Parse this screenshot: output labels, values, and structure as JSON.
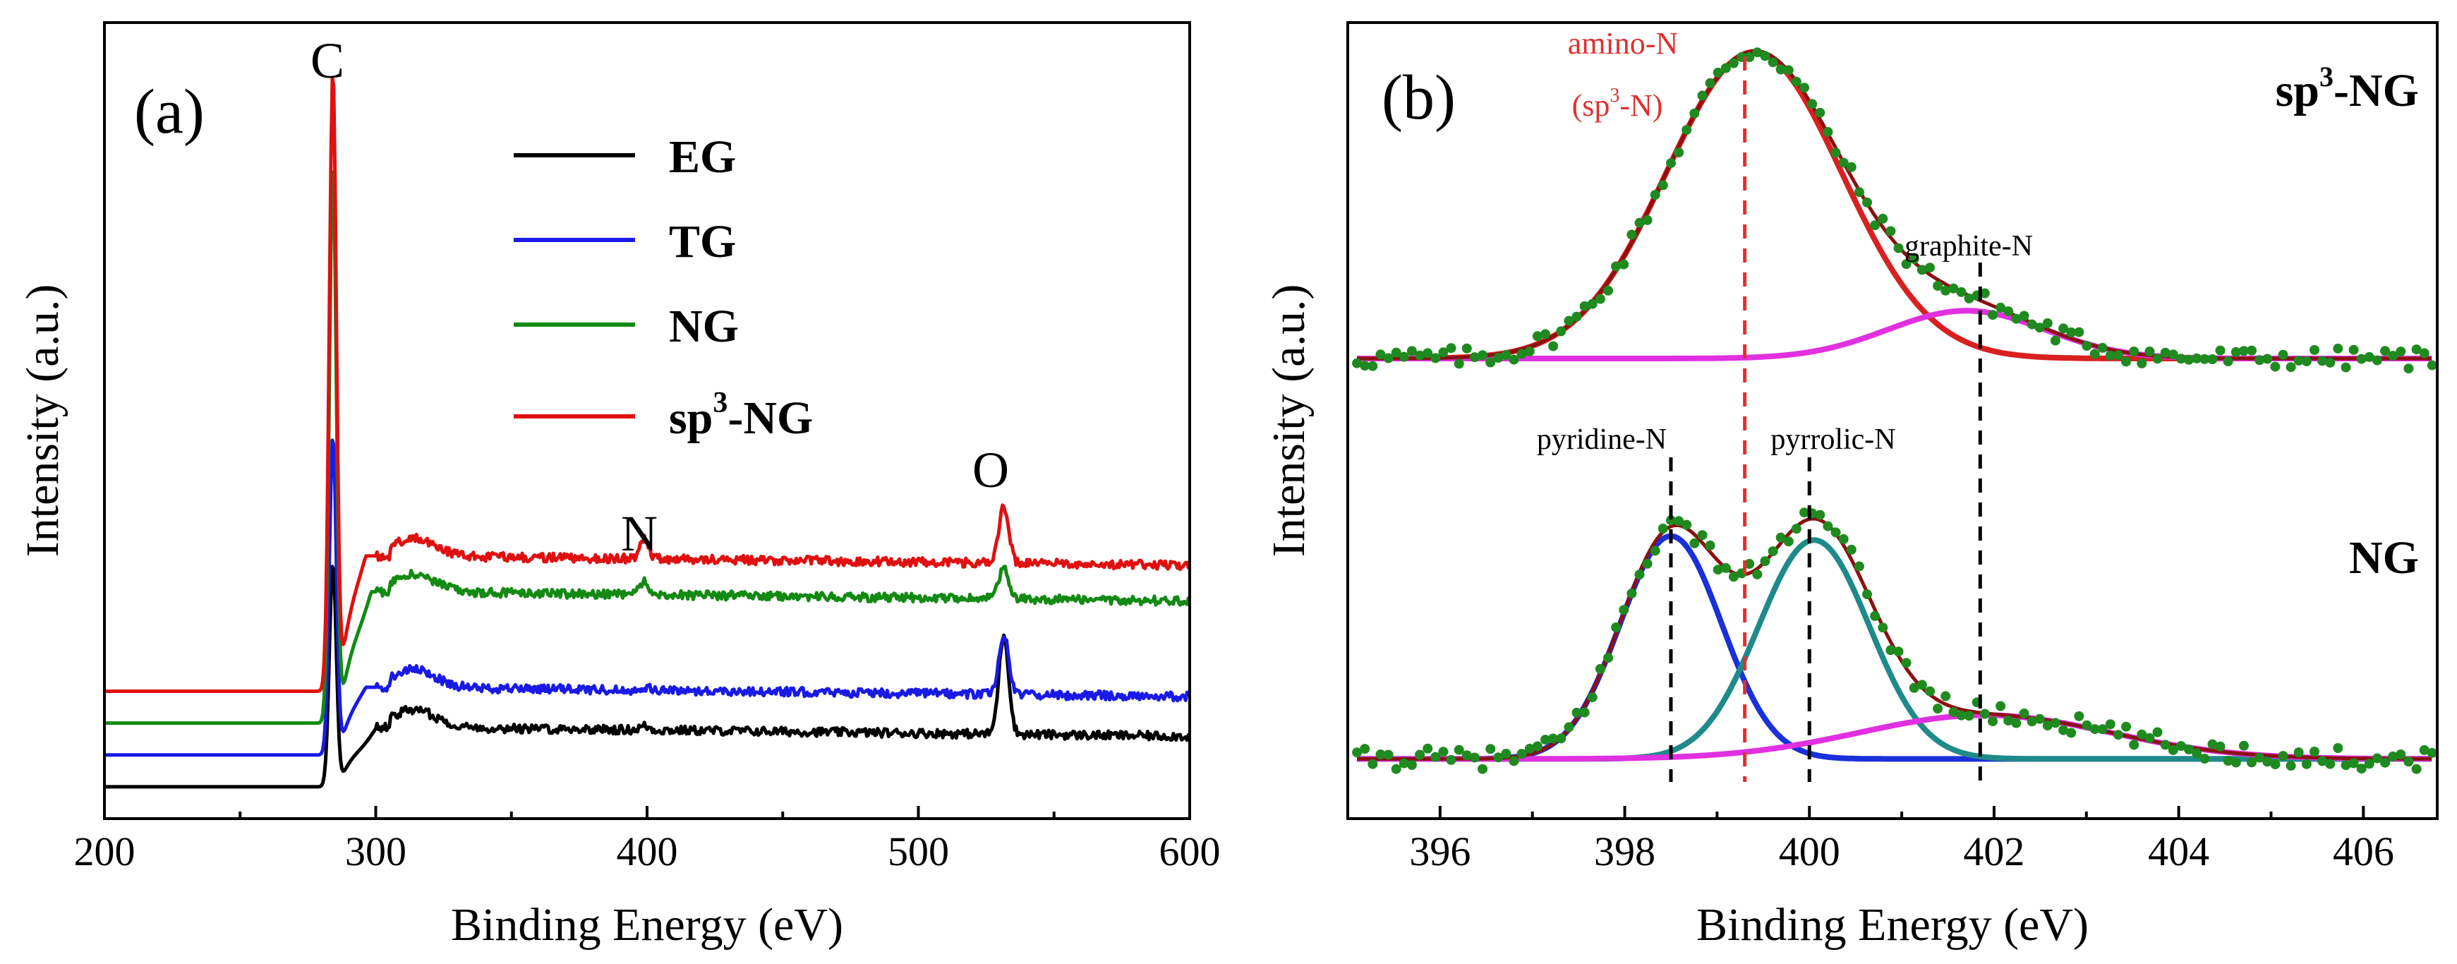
{
  "chart_data": [
    {
      "panel": "(a)",
      "type": "line",
      "title": "",
      "xlabel": "Binding Energy (eV)",
      "ylabel": "Intensity (a.u.)",
      "xlim": [
        200,
        600
      ],
      "ylim": [
        0,
        100
      ],
      "xticks": [
        200,
        300,
        400,
        500,
        600
      ],
      "legend": "top-center",
      "peak_labels": [
        {
          "text": "C",
          "x": 284
        },
        {
          "text": "N",
          "x": 399
        },
        {
          "text": "O",
          "x": 531
        }
      ],
      "series": [
        {
          "name": "EG",
          "color": "#000000",
          "baseline": 4,
          "tail": 11.5,
          "c_peak": 32,
          "n_peak": 0.5,
          "o_peak": 12.5
        },
        {
          "name": "TG",
          "color": "#1a1ae6",
          "baseline": 8,
          "tail": 16.5,
          "c_peak": 48,
          "n_peak": 0.4,
          "o_peak": 7.5
        },
        {
          "name": "NG",
          "color": "#138a13",
          "baseline": 12,
          "tail": 28.5,
          "c_peak": 82,
          "n_peak": 1.8,
          "o_peak": 4
        },
        {
          "name": "sp3-NG",
          "name_main": "sp",
          "name_sup": "3",
          "name_tail": "-NG",
          "color": "#e01010",
          "baseline": 16,
          "tail": 33,
          "c_peak": 94,
          "n_peak": 2.4,
          "o_peak": 7
        }
      ]
    },
    {
      "panel": "(b)",
      "type": "line",
      "title": "",
      "xlabel": "Binding Energy (eV)",
      "ylabel": "Intensity (a.u.)",
      "xlim": [
        395,
        406.8
      ],
      "ylim": [
        0,
        100
      ],
      "xticks": [
        396,
        398,
        400,
        402,
        404,
        406
      ],
      "sample_labels": [
        {
          "text": "sp3-NG",
          "main": "sp",
          "sup": "3",
          "tail": "-NG"
        },
        {
          "text": "NG"
        }
      ],
      "reference_lines": [
        {
          "x": 399.3,
          "color": "#e03030"
        },
        {
          "x": 398.5,
          "color": "#000000"
        },
        {
          "x": 400.0,
          "color": "#000000"
        },
        {
          "x": 401.85,
          "color": "#000000"
        }
      ],
      "component_labels": [
        {
          "text": "amino-N",
          "color": "#e03030"
        },
        {
          "text": "(sp3-N)",
          "main": "(sp",
          "sup": "3",
          "tail": "-N)",
          "color": "#e03030"
        },
        {
          "text": "graphite-N",
          "color": "#000000"
        },
        {
          "text": "pyridine-N",
          "color": "#000000"
        },
        {
          "text": "pyrrolic-N",
          "color": "#000000"
        }
      ],
      "sp3_NG": {
        "baseline": 57.8,
        "components": [
          {
            "name": "amino-N",
            "center": 399.4,
            "height": 38.5,
            "sigma": 0.95,
            "color": "#d92020"
          },
          {
            "name": "graphite-N",
            "center": 401.7,
            "height": 6.0,
            "sigma": 0.85,
            "color": "#e030e0"
          }
        ],
        "envelope_color": "#8b1010"
      },
      "NG": {
        "baseline": 7.5,
        "components": [
          {
            "name": "pyridine-N",
            "center": 398.5,
            "height": 28.0,
            "sigma": 0.55,
            "color": "#1a30d9"
          },
          {
            "name": "pyrrolic-N",
            "center": 400.05,
            "height": 27.5,
            "sigma": 0.6,
            "color": "#1e8a8a"
          },
          {
            "name": "graphite-N",
            "center": 401.9,
            "height": 5.5,
            "sigma": 1.35,
            "color": "#e030e0"
          }
        ],
        "envelope_color": "#8b1010"
      },
      "data_point_color": "#1f8a1f"
    }
  ]
}
